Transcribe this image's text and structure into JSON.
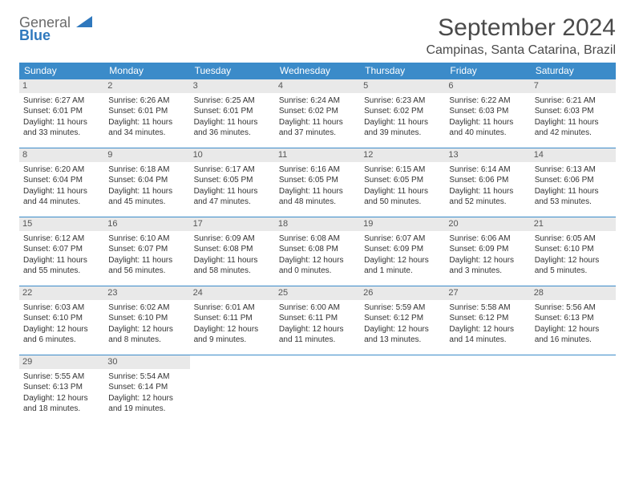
{
  "logo": {
    "general": "General",
    "blue": "Blue"
  },
  "header": {
    "month_title": "September 2024",
    "location": "Campinas, Santa Catarina, Brazil"
  },
  "colors": {
    "header_bg": "#3b8bc9",
    "header_fg": "#ffffff",
    "daynum_bg": "#e9e9e9",
    "cell_border": "#3b8bc9",
    "text": "#333333",
    "logo_general": "#6a6a6a",
    "logo_blue": "#2f78bd"
  },
  "weekdays": [
    "Sunday",
    "Monday",
    "Tuesday",
    "Wednesday",
    "Thursday",
    "Friday",
    "Saturday"
  ],
  "days": [
    {
      "n": "1",
      "sunrise": "Sunrise: 6:27 AM",
      "sunset": "Sunset: 6:01 PM",
      "dl1": "Daylight: 11 hours",
      "dl2": "and 33 minutes."
    },
    {
      "n": "2",
      "sunrise": "Sunrise: 6:26 AM",
      "sunset": "Sunset: 6:01 PM",
      "dl1": "Daylight: 11 hours",
      "dl2": "and 34 minutes."
    },
    {
      "n": "3",
      "sunrise": "Sunrise: 6:25 AM",
      "sunset": "Sunset: 6:01 PM",
      "dl1": "Daylight: 11 hours",
      "dl2": "and 36 minutes."
    },
    {
      "n": "4",
      "sunrise": "Sunrise: 6:24 AM",
      "sunset": "Sunset: 6:02 PM",
      "dl1": "Daylight: 11 hours",
      "dl2": "and 37 minutes."
    },
    {
      "n": "5",
      "sunrise": "Sunrise: 6:23 AM",
      "sunset": "Sunset: 6:02 PM",
      "dl1": "Daylight: 11 hours",
      "dl2": "and 39 minutes."
    },
    {
      "n": "6",
      "sunrise": "Sunrise: 6:22 AM",
      "sunset": "Sunset: 6:03 PM",
      "dl1": "Daylight: 11 hours",
      "dl2": "and 40 minutes."
    },
    {
      "n": "7",
      "sunrise": "Sunrise: 6:21 AM",
      "sunset": "Sunset: 6:03 PM",
      "dl1": "Daylight: 11 hours",
      "dl2": "and 42 minutes."
    },
    {
      "n": "8",
      "sunrise": "Sunrise: 6:20 AM",
      "sunset": "Sunset: 6:04 PM",
      "dl1": "Daylight: 11 hours",
      "dl2": "and 44 minutes."
    },
    {
      "n": "9",
      "sunrise": "Sunrise: 6:18 AM",
      "sunset": "Sunset: 6:04 PM",
      "dl1": "Daylight: 11 hours",
      "dl2": "and 45 minutes."
    },
    {
      "n": "10",
      "sunrise": "Sunrise: 6:17 AM",
      "sunset": "Sunset: 6:05 PM",
      "dl1": "Daylight: 11 hours",
      "dl2": "and 47 minutes."
    },
    {
      "n": "11",
      "sunrise": "Sunrise: 6:16 AM",
      "sunset": "Sunset: 6:05 PM",
      "dl1": "Daylight: 11 hours",
      "dl2": "and 48 minutes."
    },
    {
      "n": "12",
      "sunrise": "Sunrise: 6:15 AM",
      "sunset": "Sunset: 6:05 PM",
      "dl1": "Daylight: 11 hours",
      "dl2": "and 50 minutes."
    },
    {
      "n": "13",
      "sunrise": "Sunrise: 6:14 AM",
      "sunset": "Sunset: 6:06 PM",
      "dl1": "Daylight: 11 hours",
      "dl2": "and 52 minutes."
    },
    {
      "n": "14",
      "sunrise": "Sunrise: 6:13 AM",
      "sunset": "Sunset: 6:06 PM",
      "dl1": "Daylight: 11 hours",
      "dl2": "and 53 minutes."
    },
    {
      "n": "15",
      "sunrise": "Sunrise: 6:12 AM",
      "sunset": "Sunset: 6:07 PM",
      "dl1": "Daylight: 11 hours",
      "dl2": "and 55 minutes."
    },
    {
      "n": "16",
      "sunrise": "Sunrise: 6:10 AM",
      "sunset": "Sunset: 6:07 PM",
      "dl1": "Daylight: 11 hours",
      "dl2": "and 56 minutes."
    },
    {
      "n": "17",
      "sunrise": "Sunrise: 6:09 AM",
      "sunset": "Sunset: 6:08 PM",
      "dl1": "Daylight: 11 hours",
      "dl2": "and 58 minutes."
    },
    {
      "n": "18",
      "sunrise": "Sunrise: 6:08 AM",
      "sunset": "Sunset: 6:08 PM",
      "dl1": "Daylight: 12 hours",
      "dl2": "and 0 minutes."
    },
    {
      "n": "19",
      "sunrise": "Sunrise: 6:07 AM",
      "sunset": "Sunset: 6:09 PM",
      "dl1": "Daylight: 12 hours",
      "dl2": "and 1 minute."
    },
    {
      "n": "20",
      "sunrise": "Sunrise: 6:06 AM",
      "sunset": "Sunset: 6:09 PM",
      "dl1": "Daylight: 12 hours",
      "dl2": "and 3 minutes."
    },
    {
      "n": "21",
      "sunrise": "Sunrise: 6:05 AM",
      "sunset": "Sunset: 6:10 PM",
      "dl1": "Daylight: 12 hours",
      "dl2": "and 5 minutes."
    },
    {
      "n": "22",
      "sunrise": "Sunrise: 6:03 AM",
      "sunset": "Sunset: 6:10 PM",
      "dl1": "Daylight: 12 hours",
      "dl2": "and 6 minutes."
    },
    {
      "n": "23",
      "sunrise": "Sunrise: 6:02 AM",
      "sunset": "Sunset: 6:10 PM",
      "dl1": "Daylight: 12 hours",
      "dl2": "and 8 minutes."
    },
    {
      "n": "24",
      "sunrise": "Sunrise: 6:01 AM",
      "sunset": "Sunset: 6:11 PM",
      "dl1": "Daylight: 12 hours",
      "dl2": "and 9 minutes."
    },
    {
      "n": "25",
      "sunrise": "Sunrise: 6:00 AM",
      "sunset": "Sunset: 6:11 PM",
      "dl1": "Daylight: 12 hours",
      "dl2": "and 11 minutes."
    },
    {
      "n": "26",
      "sunrise": "Sunrise: 5:59 AM",
      "sunset": "Sunset: 6:12 PM",
      "dl1": "Daylight: 12 hours",
      "dl2": "and 13 minutes."
    },
    {
      "n": "27",
      "sunrise": "Sunrise: 5:58 AM",
      "sunset": "Sunset: 6:12 PM",
      "dl1": "Daylight: 12 hours",
      "dl2": "and 14 minutes."
    },
    {
      "n": "28",
      "sunrise": "Sunrise: 5:56 AM",
      "sunset": "Sunset: 6:13 PM",
      "dl1": "Daylight: 12 hours",
      "dl2": "and 16 minutes."
    },
    {
      "n": "29",
      "sunrise": "Sunrise: 5:55 AM",
      "sunset": "Sunset: 6:13 PM",
      "dl1": "Daylight: 12 hours",
      "dl2": "and 18 minutes."
    },
    {
      "n": "30",
      "sunrise": "Sunrise: 5:54 AM",
      "sunset": "Sunset: 6:14 PM",
      "dl1": "Daylight: 12 hours",
      "dl2": "and 19 minutes."
    }
  ]
}
